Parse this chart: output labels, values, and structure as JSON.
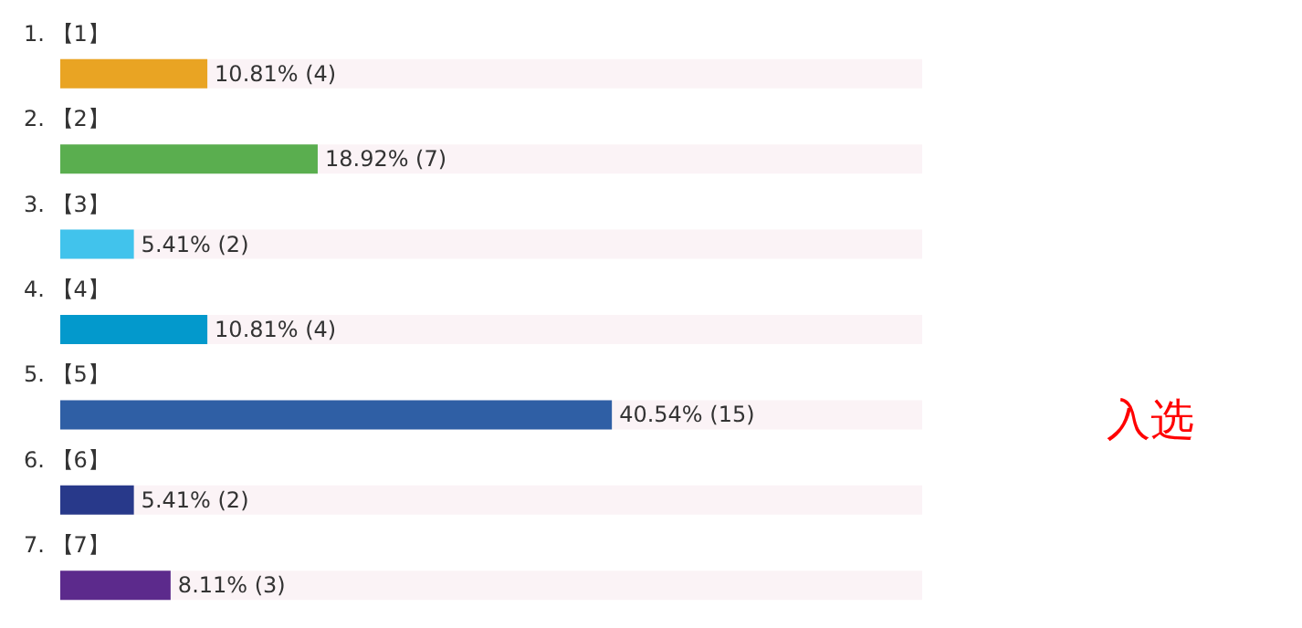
{
  "chart_data": {
    "type": "bar",
    "orientation": "horizontal",
    "categories": [
      "1. 【1】",
      "2. 【2】",
      "3. 【3】",
      "4. 【4】",
      "5. 【5】",
      "6. 【6】",
      "7. 【7】"
    ],
    "values": [
      10.81,
      18.92,
      5.41,
      10.81,
      40.54,
      5.41,
      8.11
    ],
    "colors": [
      "#e9a423",
      "#5aae4f",
      "#41c3ec",
      "#0399cc",
      "#2f5fa5",
      "#28398a",
      "#5c2a8c"
    ],
    "value_labels": [
      "10.81% (4)",
      "18.92% (7)",
      "5.41% (2)",
      "10.81% (4)",
      "40.54% (15)",
      "5.41% (2)",
      "8.11% (3)"
    ],
    "annotations": [
      "入选"
    ]
  }
}
